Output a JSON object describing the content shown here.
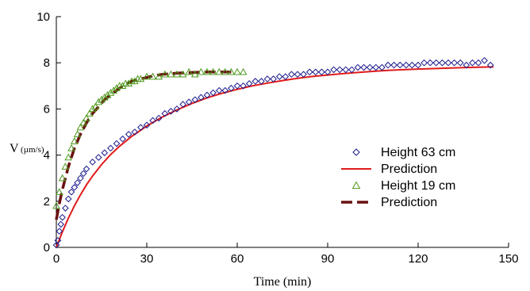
{
  "chart_data": {
    "type": "scatter",
    "xlabel": "Time (min)",
    "ylabel_main": "V",
    "ylabel_unit": "(µm/s)",
    "xlim": [
      0,
      150
    ],
    "ylim": [
      0,
      10
    ],
    "xticks": [
      0,
      30,
      60,
      90,
      120,
      150
    ],
    "yticks": [
      0,
      2,
      4,
      6,
      8,
      10
    ],
    "grid": false,
    "legend_position": "center-right",
    "series": [
      {
        "name": "Height 63 cm",
        "kind": "scatter",
        "marker": "diamond",
        "color": "#1a1a8c",
        "x": [
          0,
          0.5,
          1,
          1.5,
          2,
          3,
          4,
          5,
          6,
          7,
          8,
          9,
          10,
          12,
          14,
          16,
          18,
          20,
          22,
          24,
          26,
          28,
          30,
          32,
          34,
          36,
          38,
          40,
          42,
          44,
          46,
          48,
          50,
          52,
          54,
          56,
          58,
          60,
          62,
          64,
          66,
          68,
          70,
          72,
          74,
          76,
          78,
          80,
          82,
          84,
          86,
          88,
          90,
          92,
          94,
          96,
          98,
          100,
          102,
          104,
          106,
          108,
          110,
          112,
          114,
          116,
          118,
          120,
          122,
          124,
          126,
          128,
          130,
          132,
          134,
          136,
          138,
          140,
          142,
          144
        ],
        "y": [
          0.1,
          0.3,
          0.7,
          1.0,
          1.3,
          1.7,
          2.1,
          2.4,
          2.6,
          2.8,
          3.0,
          3.2,
          3.4,
          3.7,
          3.9,
          4.1,
          4.3,
          4.5,
          4.7,
          4.9,
          5.0,
          5.2,
          5.3,
          5.5,
          5.6,
          5.8,
          5.9,
          6.0,
          6.2,
          6.3,
          6.4,
          6.5,
          6.6,
          6.7,
          6.8,
          6.8,
          6.9,
          7.0,
          7.0,
          7.1,
          7.2,
          7.2,
          7.3,
          7.3,
          7.4,
          7.4,
          7.5,
          7.5,
          7.5,
          7.6,
          7.6,
          7.6,
          7.6,
          7.7,
          7.7,
          7.7,
          7.7,
          7.8,
          7.8,
          7.8,
          7.8,
          7.8,
          7.9,
          7.9,
          7.9,
          7.9,
          7.9,
          7.9,
          8.0,
          8.0,
          8.0,
          8.0,
          8.0,
          8.0,
          8.0,
          7.9,
          8.0,
          8.0,
          8.1,
          7.9
        ]
      },
      {
        "name": "Prediction",
        "kind": "line",
        "style": "solid",
        "color": "#e01b1b",
        "x": [
          0,
          2,
          4,
          6,
          8,
          10,
          12,
          15,
          18,
          21,
          25,
          30,
          35,
          40,
          45,
          50,
          55,
          60,
          65,
          70,
          75,
          80,
          85,
          90,
          95,
          100,
          105,
          110,
          115,
          120,
          125,
          130,
          135,
          140,
          145
        ],
        "y": [
          0.0,
          0.67,
          1.27,
          1.8,
          2.28,
          2.71,
          3.09,
          3.59,
          4.02,
          4.39,
          4.81,
          5.26,
          5.64,
          5.96,
          6.24,
          6.48,
          6.68,
          6.85,
          7.0,
          7.12,
          7.23,
          7.33,
          7.41,
          7.47,
          7.53,
          7.58,
          7.63,
          7.67,
          7.7,
          7.73,
          7.75,
          7.77,
          7.79,
          7.81,
          7.82
        ]
      },
      {
        "name": "Height 19 cm",
        "kind": "scatter",
        "marker": "triangle",
        "color": "#4d9a1c",
        "x": [
          0,
          1,
          2,
          3,
          4,
          5,
          6,
          7,
          8,
          9,
          10,
          11,
          12,
          13,
          14,
          15,
          16,
          17,
          18,
          19,
          20,
          21,
          22,
          23,
          24,
          25,
          26,
          27,
          28,
          30,
          32,
          34,
          36,
          38,
          40,
          42,
          44,
          46,
          48,
          50,
          52,
          54,
          56,
          58,
          60,
          62
        ],
        "y": [
          1.8,
          2.4,
          3.0,
          3.5,
          3.9,
          4.3,
          4.6,
          4.9,
          5.2,
          5.4,
          5.6,
          5.8,
          6.0,
          6.1,
          6.3,
          6.4,
          6.5,
          6.6,
          6.7,
          6.8,
          6.9,
          7.0,
          7.0,
          7.1,
          7.1,
          7.2,
          7.2,
          7.3,
          7.3,
          7.4,
          7.4,
          7.4,
          7.5,
          7.5,
          7.5,
          7.5,
          7.6,
          7.5,
          7.6,
          7.6,
          7.6,
          7.6,
          7.6,
          7.6,
          7.6,
          7.6
        ]
      },
      {
        "name": "Prediction",
        "kind": "line",
        "style": "dashed",
        "color": "#6b1010",
        "x": [
          0,
          1,
          2,
          3,
          4,
          5,
          6,
          8,
          10,
          12,
          14,
          16,
          18,
          20,
          22,
          25,
          28,
          31,
          35,
          40,
          45,
          50,
          55,
          58
        ],
        "y": [
          1.2,
          1.9,
          2.5,
          3.0,
          3.5,
          3.9,
          4.3,
          4.9,
          5.4,
          5.8,
          6.1,
          6.4,
          6.6,
          6.8,
          7.0,
          7.2,
          7.3,
          7.4,
          7.5,
          7.55,
          7.58,
          7.6,
          7.6,
          7.6
        ]
      }
    ]
  }
}
